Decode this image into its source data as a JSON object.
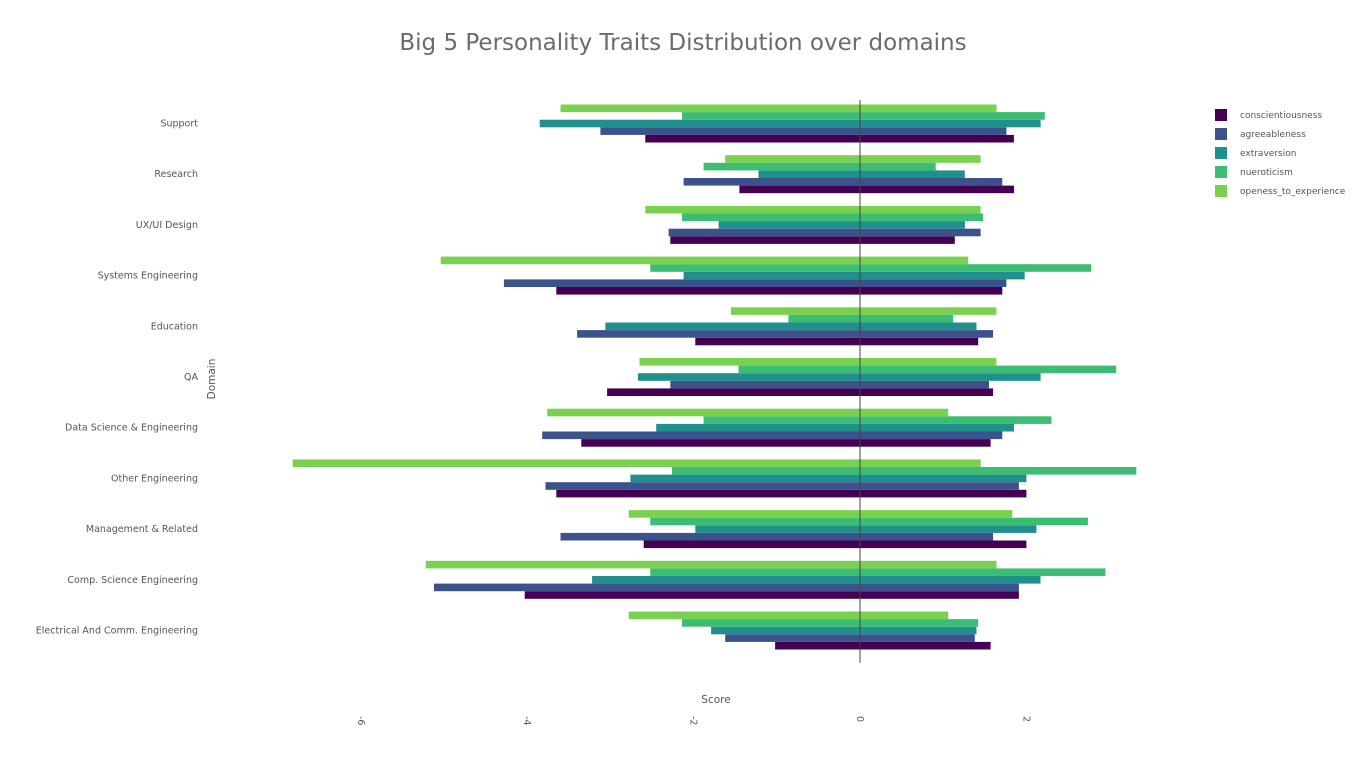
{
  "chart_data": {
    "type": "bar",
    "orientation": "horizontal",
    "title": "Big 5 Personality Traits Distribution over domains",
    "xlabel": "Score",
    "ylabel": "Domain",
    "xlim": [
      -7.5,
      4.2
    ],
    "xticks": [
      -6,
      -4,
      -2,
      0,
      2
    ],
    "grid": false,
    "legend_position": "top-right",
    "categories": [
      "Support",
      "Research",
      "UX/UI Design",
      "Systems Engineering",
      "Education",
      "QA",
      "Data Science & Engineering",
      "Other Engineering",
      "Management & Related",
      "Comp. Science Engineering",
      "Electrical And Comm. Engineering"
    ],
    "series": [
      {
        "name": "conscientiousness",
        "color": "#440154",
        "ranges": [
          [
            -2.58,
            1.85
          ],
          [
            -1.45,
            1.85
          ],
          [
            -2.28,
            1.14
          ],
          [
            -3.65,
            1.71
          ],
          [
            -1.98,
            1.42
          ],
          [
            -3.04,
            1.6
          ],
          [
            -3.35,
            1.57
          ],
          [
            -3.65,
            2.0
          ],
          [
            -2.6,
            2.0
          ],
          [
            -4.03,
            1.91
          ],
          [
            -1.02,
            1.57
          ]
        ]
      },
      {
        "name": "agreeableness",
        "color": "#3b528b",
        "ranges": [
          [
            -3.12,
            1.76
          ],
          [
            -2.12,
            1.71
          ],
          [
            -2.3,
            1.45
          ],
          [
            -4.28,
            1.76
          ],
          [
            -3.4,
            1.6
          ],
          [
            -2.28,
            1.55
          ],
          [
            -3.82,
            1.71
          ],
          [
            -3.78,
            1.91
          ],
          [
            -3.6,
            1.6
          ],
          [
            -5.12,
            1.91
          ],
          [
            -1.62,
            1.38
          ]
        ]
      },
      {
        "name": "extraversion",
        "color": "#21908d",
        "ranges": [
          [
            -3.85,
            2.17
          ],
          [
            -1.22,
            1.26
          ],
          [
            -1.7,
            1.26
          ],
          [
            -2.12,
            1.98
          ],
          [
            -3.06,
            1.4
          ],
          [
            -2.67,
            2.17
          ],
          [
            -2.45,
            1.85
          ],
          [
            -2.76,
            2.0
          ],
          [
            -1.98,
            2.12
          ],
          [
            -3.22,
            2.17
          ],
          [
            -1.79,
            1.4
          ]
        ]
      },
      {
        "name": "nueroticism",
        "color": "#3dbc74",
        "ranges": [
          [
            -2.14,
            2.22
          ],
          [
            -1.88,
            0.91
          ],
          [
            -2.14,
            1.48
          ],
          [
            -2.52,
            2.78
          ],
          [
            -0.86,
            1.12
          ],
          [
            -1.46,
            3.08
          ],
          [
            -1.88,
            2.3
          ],
          [
            -2.26,
            3.32
          ],
          [
            -2.52,
            2.74
          ],
          [
            -2.52,
            2.95
          ],
          [
            -2.14,
            1.42
          ]
        ]
      },
      {
        "name": "openess_to_experience",
        "color": "#7ad151",
        "ranges": [
          [
            -3.6,
            1.64
          ],
          [
            -1.62,
            1.45
          ],
          [
            -2.58,
            1.45
          ],
          [
            -5.04,
            1.3
          ],
          [
            -1.55,
            1.64
          ],
          [
            -2.65,
            1.64
          ],
          [
            -3.76,
            1.06
          ],
          [
            -6.82,
            1.45
          ],
          [
            -2.78,
            1.83
          ],
          [
            -5.22,
            1.64
          ],
          [
            -2.78,
            1.06
          ]
        ]
      }
    ]
  }
}
